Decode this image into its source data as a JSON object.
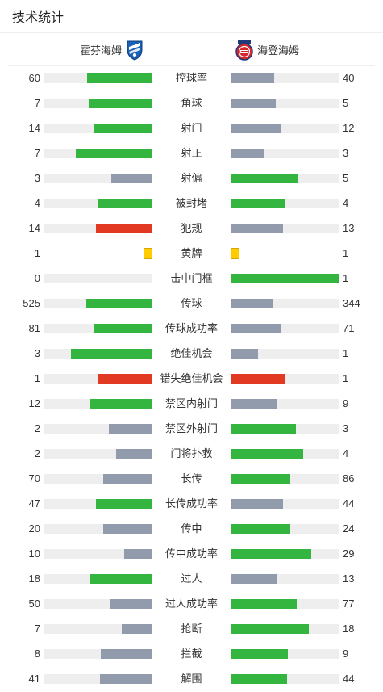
{
  "header": {
    "title": "技术统计"
  },
  "teams": {
    "home": {
      "name": "霍芬海姆"
    },
    "away": {
      "name": "海登海姆"
    }
  },
  "colors": {
    "win": "#33b540",
    "lose": "#929bab",
    "foul": "#e23a22",
    "card": "#ffcc00",
    "track": "#eeeeee"
  },
  "stats": [
    {
      "label": "控球率",
      "home": "60",
      "away": "40",
      "home_color": "win",
      "away_color": "lose"
    },
    {
      "label": "角球",
      "home": "7",
      "away": "5",
      "home_color": "win",
      "away_color": "lose"
    },
    {
      "label": "射门",
      "home": "14",
      "away": "12",
      "home_color": "win",
      "away_color": "lose"
    },
    {
      "label": "射正",
      "home": "7",
      "away": "3",
      "home_color": "win",
      "away_color": "lose"
    },
    {
      "label": "射偏",
      "home": "3",
      "away": "5",
      "home_color": "lose",
      "away_color": "win"
    },
    {
      "label": "被封堵",
      "home": "4",
      "away": "4",
      "home_color": "win",
      "away_color": "win"
    },
    {
      "label": "犯规",
      "home": "14",
      "away": "13",
      "home_color": "foul",
      "away_color": "lose"
    },
    {
      "label": "黄牌",
      "home": "1",
      "away": "1",
      "type": "card"
    },
    {
      "label": "击中门框",
      "home": "0",
      "away": "1",
      "home_color": "lose",
      "away_color": "win"
    },
    {
      "label": "传球",
      "home": "525",
      "away": "344",
      "home_color": "win",
      "away_color": "lose"
    },
    {
      "label": "传球成功率",
      "home": "81",
      "away": "71",
      "home_color": "win",
      "away_color": "lose"
    },
    {
      "label": "绝佳机会",
      "home": "3",
      "away": "1",
      "home_color": "win",
      "away_color": "lose"
    },
    {
      "label": "错失绝佳机会",
      "home": "1",
      "away": "1",
      "home_color": "foul",
      "away_color": "foul"
    },
    {
      "label": "禁区内射门",
      "home": "12",
      "away": "9",
      "home_color": "win",
      "away_color": "lose"
    },
    {
      "label": "禁区外射门",
      "home": "2",
      "away": "3",
      "home_color": "lose",
      "away_color": "win"
    },
    {
      "label": "门将扑救",
      "home": "2",
      "away": "4",
      "home_color": "lose",
      "away_color": "win"
    },
    {
      "label": "长传",
      "home": "70",
      "away": "86",
      "home_color": "lose",
      "away_color": "win"
    },
    {
      "label": "长传成功率",
      "home": "47",
      "away": "44",
      "home_color": "win",
      "away_color": "lose"
    },
    {
      "label": "传中",
      "home": "20",
      "away": "24",
      "home_color": "lose",
      "away_color": "win"
    },
    {
      "label": "传中成功率",
      "home": "10",
      "away": "29",
      "home_color": "lose",
      "away_color": "win"
    },
    {
      "label": "过人",
      "home": "18",
      "away": "13",
      "home_color": "win",
      "away_color": "lose"
    },
    {
      "label": "过人成功率",
      "home": "50",
      "away": "77",
      "home_color": "lose",
      "away_color": "win"
    },
    {
      "label": "抢断",
      "home": "7",
      "away": "18",
      "home_color": "lose",
      "away_color": "win"
    },
    {
      "label": "拦截",
      "home": "8",
      "away": "9",
      "home_color": "lose",
      "away_color": "win"
    },
    {
      "label": "解围",
      "home": "41",
      "away": "44",
      "home_color": "lose",
      "away_color": "win"
    }
  ]
}
